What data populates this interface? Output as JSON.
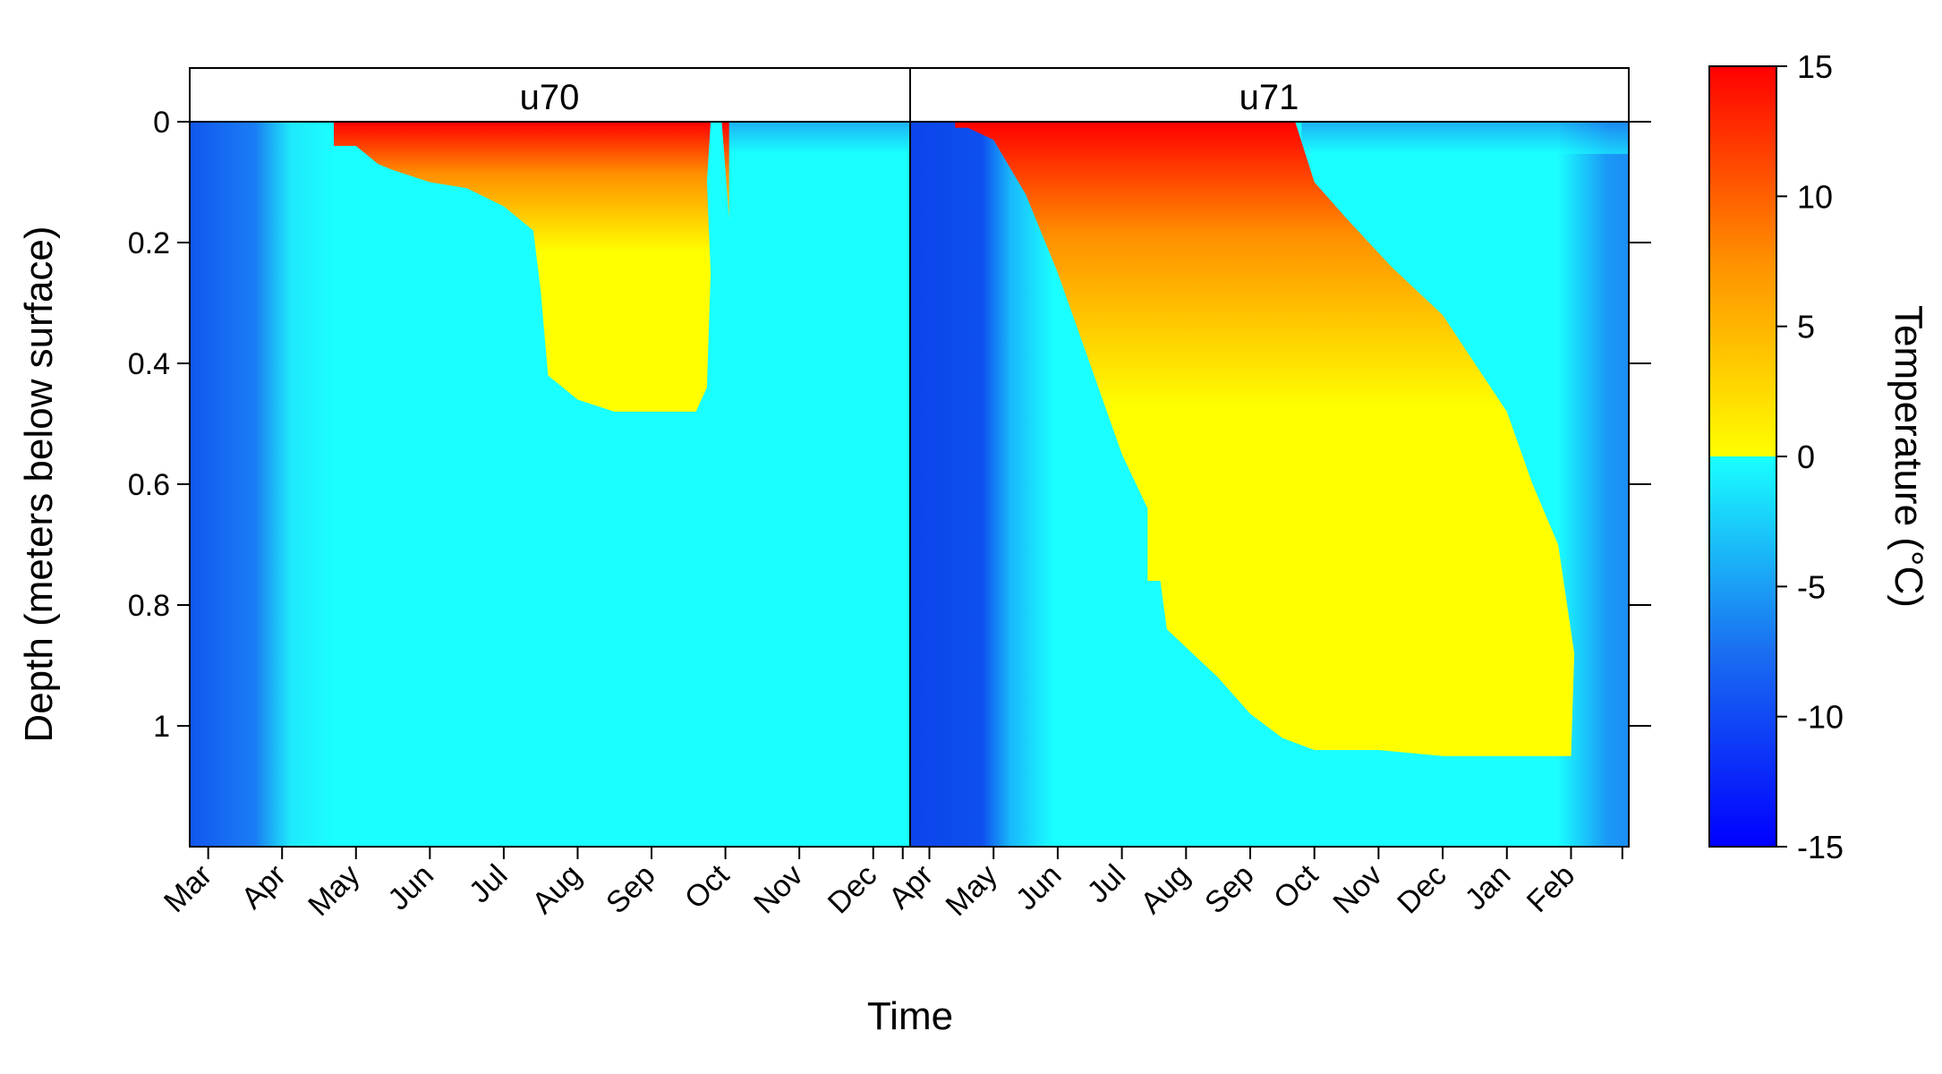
{
  "chart_data": {
    "type": "heatmap",
    "xlabel": "Time",
    "ylabel": "Depth (meters below surface)",
    "ylim": [
      0,
      1.2
    ],
    "y_ticks": [
      {
        "value": 0,
        "label": "0"
      },
      {
        "value": 0.2,
        "label": "0.2"
      },
      {
        "value": 0.4,
        "label": "0.4"
      },
      {
        "value": 0.6,
        "label": "0.6"
      },
      {
        "value": 0.8,
        "label": "0.8"
      },
      {
        "value": 1.0,
        "label": "1"
      }
    ],
    "colorbar": {
      "title": "Temperature (°C)",
      "range": [
        -15,
        15
      ],
      "threshold": 0,
      "ticks": [
        "15",
        "10",
        "5",
        "0",
        "-5",
        "-10",
        "-15"
      ],
      "tick_values": [
        15,
        10,
        5,
        0,
        -5,
        -10,
        -15
      ],
      "colors": {
        "cold_min": "#0000ff",
        "cold_mid": "#1a6ef0",
        "cold_max": "#1affff",
        "warm_min": "#ffff00",
        "warm_mid": "#ff9000",
        "warm_max": "#ff0000"
      }
    },
    "panels": [
      {
        "name": "u70",
        "x_range_month_index": [
          -0.25,
          9.5
        ],
        "x_ticks": [
          "Mar",
          "Apr",
          "May",
          "Jun",
          "Jul",
          "Aug",
          "Sep",
          "Oct",
          "Nov",
          "Dec"
        ],
        "x_tick_positions": [
          0,
          1,
          2,
          3,
          4,
          5,
          6,
          7,
          8,
          9
        ],
        "thaw_depth": [
          [
            1.7,
            0.04
          ],
          [
            2.0,
            0.04
          ],
          [
            2.3,
            0.07
          ],
          [
            2.5,
            0.08
          ],
          [
            3.0,
            0.1
          ],
          [
            3.5,
            0.11
          ],
          [
            4.0,
            0.14
          ],
          [
            4.4,
            0.18
          ],
          [
            4.5,
            0.28
          ],
          [
            4.6,
            0.42
          ],
          [
            5.0,
            0.46
          ],
          [
            5.5,
            0.48
          ],
          [
            6.0,
            0.48
          ],
          [
            6.6,
            0.48
          ],
          [
            6.75,
            0.44
          ],
          [
            6.8,
            0.25
          ],
          [
            6.75,
            0.1
          ],
          [
            6.8,
            0.0
          ],
          [
            6.95,
            0.0
          ],
          [
            7.05,
            0.16
          ]
        ],
        "surface_warm_until": 7.0
      },
      {
        "name": "u71",
        "x_range_month_index": [
          -0.3,
          10.9
        ],
        "x_ticks": [
          "Apr",
          "May",
          "Jun",
          "Jul",
          "Aug",
          "Sep",
          "Oct",
          "Nov",
          "Dec",
          "Jan",
          "Feb"
        ],
        "x_tick_positions": [
          0,
          1,
          2,
          3,
          4,
          5,
          6,
          7,
          8,
          9,
          10
        ],
        "thaw_depth": [
          [
            0.4,
            0.01
          ],
          [
            0.6,
            0.01
          ],
          [
            1.0,
            0.03
          ],
          [
            1.5,
            0.12
          ],
          [
            2.0,
            0.25
          ],
          [
            2.5,
            0.4
          ],
          [
            3.0,
            0.55
          ],
          [
            3.4,
            0.64
          ],
          [
            3.4,
            0.76
          ],
          [
            3.6,
            0.76
          ],
          [
            3.7,
            0.84
          ],
          [
            4.0,
            0.87
          ],
          [
            4.5,
            0.92
          ],
          [
            5.0,
            0.98
          ],
          [
            5.5,
            1.02
          ],
          [
            6.0,
            1.04
          ],
          [
            7.0,
            1.04
          ],
          [
            8.0,
            1.05
          ],
          [
            9.0,
            1.05
          ],
          [
            10.0,
            1.05
          ],
          [
            10.05,
            0.88
          ],
          [
            9.8,
            0.7
          ],
          [
            9.4,
            0.6
          ],
          [
            9.0,
            0.48
          ],
          [
            8.5,
            0.4
          ],
          [
            8.0,
            0.32
          ],
          [
            7.2,
            0.24
          ],
          [
            6.5,
            0.16
          ],
          [
            6.0,
            0.1
          ],
          [
            5.7,
            0.0
          ]
        ],
        "surface_warm_until": 5.8
      }
    ]
  }
}
